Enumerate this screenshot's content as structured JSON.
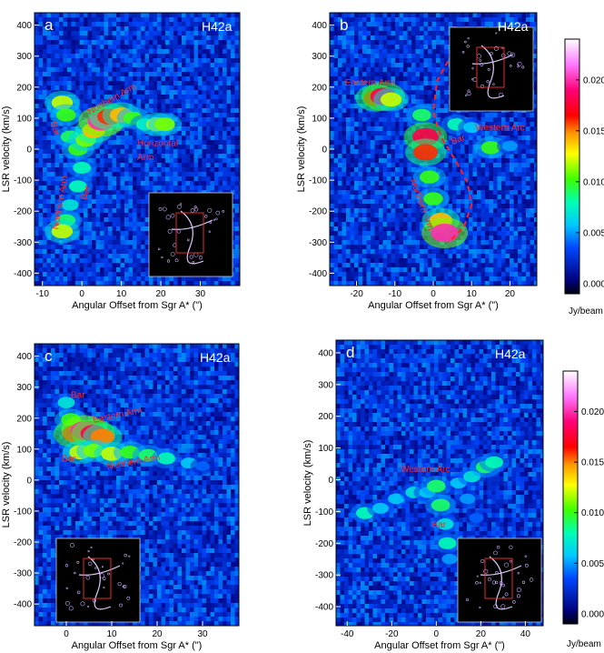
{
  "chart_data": [
    {
      "id": "a",
      "type": "heatmap",
      "panel_label": "a",
      "title": "H42a",
      "xlabel": "Angular Offset from Sgr A* (\")",
      "ylabel": "LSR velocity (km/s)",
      "xlim": [
        -12,
        40
      ],
      "ylim": [
        -440,
        440
      ],
      "xticks": [
        -10,
        0,
        10,
        20,
        30
      ],
      "yticks": [
        -400,
        -300,
        -200,
        -100,
        0,
        100,
        200,
        300,
        400
      ],
      "features": [
        {
          "x": -5,
          "y": 150,
          "i": 0.012
        },
        {
          "x": -4,
          "y": 110,
          "i": 0.01
        },
        {
          "x": -3,
          "y": 40,
          "i": 0.009
        },
        {
          "x": -1,
          "y": 0,
          "i": 0.01
        },
        {
          "x": 1,
          "y": 30,
          "i": 0.011
        },
        {
          "x": 3,
          "y": 60,
          "i": 0.014
        },
        {
          "x": 5,
          "y": 90,
          "i": 0.02
        },
        {
          "x": 7,
          "y": 105,
          "i": 0.016
        },
        {
          "x": 10,
          "y": 110,
          "i": 0.014
        },
        {
          "x": 13,
          "y": 100,
          "i": 0.01
        },
        {
          "x": 16,
          "y": 80,
          "i": 0.008
        },
        {
          "x": 19,
          "y": 80,
          "i": 0.012
        },
        {
          "x": 21,
          "y": 80,
          "i": 0.011
        },
        {
          "x": 0,
          "y": -60,
          "i": 0.008
        },
        {
          "x": -1,
          "y": -120,
          "i": 0.008
        },
        {
          "x": -3,
          "y": -180,
          "i": 0.007
        },
        {
          "x": -4,
          "y": -230,
          "i": 0.009
        },
        {
          "x": -5,
          "y": -265,
          "i": 0.012
        }
      ],
      "annotations": [
        {
          "text": "Bar",
          "x": -8,
          "y": 85,
          "rot": 72
        },
        {
          "text": "Northern Arm",
          "x": 2,
          "y": 110,
          "rot": -30
        },
        {
          "text": "Horizontal",
          "x": 14,
          "y": 10,
          "rot": 0
        },
        {
          "text": "Arm",
          "x": 14,
          "y": -35,
          "rot": 0
        },
        {
          "text": "Bar",
          "x": 1,
          "y": -165,
          "rot": -70
        },
        {
          "text": "Northern Arm",
          "x": -6,
          "y": -260,
          "rot": -80
        }
      ]
    },
    {
      "id": "b",
      "type": "heatmap",
      "panel_label": "b",
      "title": "H42a",
      "xlabel": "Angular Offset from Sgr A* (\")",
      "ylabel": "LSR velocity (km/s)",
      "xlim": [
        -27,
        27
      ],
      "ylim": [
        -440,
        440
      ],
      "xticks": [
        -20,
        -10,
        0,
        10,
        20
      ],
      "yticks": [
        -400,
        -300,
        -200,
        -100,
        0,
        100,
        200,
        300,
        400
      ],
      "features": [
        {
          "x": -15,
          "y": 165,
          "i": 0.016
        },
        {
          "x": -13,
          "y": 170,
          "i": 0.018
        },
        {
          "x": -11,
          "y": 160,
          "i": 0.012
        },
        {
          "x": -3,
          "y": 110,
          "i": 0.009
        },
        {
          "x": -2,
          "y": 40,
          "i": 0.018
        },
        {
          "x": -2,
          "y": -10,
          "i": 0.016
        },
        {
          "x": -1,
          "y": -90,
          "i": 0.01
        },
        {
          "x": 0,
          "y": -160,
          "i": 0.01
        },
        {
          "x": 2,
          "y": -230,
          "i": 0.014
        },
        {
          "x": 3,
          "y": -270,
          "i": 0.02
        },
        {
          "x": 6,
          "y": 80,
          "i": 0.008
        },
        {
          "x": 10,
          "y": 70,
          "i": 0.006
        },
        {
          "x": 15,
          "y": 5,
          "i": 0.01
        },
        {
          "x": 20,
          "y": 10,
          "i": 0.005
        }
      ],
      "curve": [
        {
          "x": 5,
          "y": 310
        },
        {
          "x": 1,
          "y": 220
        },
        {
          "x": 0,
          "y": 120
        },
        {
          "x": 2,
          "y": 40
        },
        {
          "x": 6,
          "y": -40
        },
        {
          "x": 9,
          "y": -110
        },
        {
          "x": 10,
          "y": -180
        },
        {
          "x": 8,
          "y": -250
        },
        {
          "x": 4,
          "y": -300
        }
      ],
      "annotations": [
        {
          "text": "Eastern Arm",
          "x": -23,
          "y": 205,
          "rot": 0
        },
        {
          "text": "Western Arc",
          "x": 11,
          "y": 60,
          "rot": 0
        },
        {
          "text": "Bar",
          "x": 5,
          "y": 15,
          "rot": -20
        },
        {
          "text": "Northern Arm",
          "x": -6,
          "y": -100,
          "rot": 70
        }
      ]
    },
    {
      "id": "c",
      "type": "heatmap",
      "panel_label": "c",
      "title": "H42a",
      "xlabel": "Angular Offset from Sgr A* (\")",
      "ylabel": "LSR velocity (km/s)",
      "xlim": [
        -7,
        38
      ],
      "ylim": [
        -470,
        440
      ],
      "xticks": [
        0,
        10,
        20,
        30
      ],
      "yticks": [
        -400,
        -300,
        -200,
        -100,
        0,
        100,
        200,
        300,
        400
      ],
      "features": [
        {
          "x": 0,
          "y": 250,
          "i": 0.007
        },
        {
          "x": 1,
          "y": 195,
          "i": 0.01
        },
        {
          "x": 2,
          "y": 150,
          "i": 0.018
        },
        {
          "x": 4,
          "y": 160,
          "i": 0.02
        },
        {
          "x": 6,
          "y": 150,
          "i": 0.018
        },
        {
          "x": 8,
          "y": 140,
          "i": 0.015
        },
        {
          "x": 3,
          "y": 90,
          "i": 0.012
        },
        {
          "x": 6,
          "y": 95,
          "i": 0.011
        },
        {
          "x": 10,
          "y": 85,
          "i": 0.012
        },
        {
          "x": 14,
          "y": 90,
          "i": 0.01
        },
        {
          "x": 18,
          "y": 80,
          "i": 0.009
        },
        {
          "x": 22,
          "y": 70,
          "i": 0.008
        },
        {
          "x": 27,
          "y": 55,
          "i": 0.006
        },
        {
          "x": 30,
          "y": 45,
          "i": 0.004
        }
      ],
      "annotations": [
        {
          "text": "Bar",
          "x": 1,
          "y": 265,
          "rot": 0
        },
        {
          "text": "Eastern Arm",
          "x": 6,
          "y": 185,
          "rot": -12
        },
        {
          "text": "Bar",
          "x": -1,
          "y": 60,
          "rot": 0
        },
        {
          "text": "Northern Arm",
          "x": 9,
          "y": 35,
          "rot": -10
        }
      ]
    },
    {
      "id": "d",
      "type": "heatmap",
      "panel_label": "d",
      "title": "H42a",
      "xlabel": "Angular Offset from Sgr A* (\")",
      "ylabel": "LSR velocity (km/s)",
      "xlim": [
        -45,
        48
      ],
      "ylim": [
        -460,
        440
      ],
      "xticks": [
        -40,
        -20,
        0,
        20,
        40
      ],
      "yticks": [
        -400,
        -300,
        -200,
        -100,
        0,
        100,
        200,
        300,
        400
      ],
      "features": [
        {
          "x": -32,
          "y": -105,
          "i": 0.008
        },
        {
          "x": -25,
          "y": -90,
          "i": 0.006
        },
        {
          "x": -18,
          "y": -60,
          "i": 0.006
        },
        {
          "x": -10,
          "y": -40,
          "i": 0.007
        },
        {
          "x": -4,
          "y": -40,
          "i": 0.006
        },
        {
          "x": 0,
          "y": -20,
          "i": 0.009
        },
        {
          "x": 2,
          "y": -80,
          "i": 0.009
        },
        {
          "x": 4,
          "y": -140,
          "i": 0.007
        },
        {
          "x": 5,
          "y": -200,
          "i": 0.008
        },
        {
          "x": 6,
          "y": -250,
          "i": 0.005
        },
        {
          "x": 10,
          "y": -10,
          "i": 0.006
        },
        {
          "x": 16,
          "y": 10,
          "i": 0.007
        },
        {
          "x": 22,
          "y": 40,
          "i": 0.009
        },
        {
          "x": 26,
          "y": 55,
          "i": 0.008
        },
        {
          "x": 14,
          "y": -60,
          "i": 0.005
        },
        {
          "x": 18,
          "y": -120,
          "i": 0.004
        }
      ],
      "annotations": [
        {
          "text": "Western Arc",
          "x": -16,
          "y": 25,
          "rot": 0
        },
        {
          "text": "Bar",
          "x": -2,
          "y": -150,
          "rot": 0
        }
      ]
    }
  ],
  "colorbar_top": {
    "label": "Jy/beam",
    "ticks": [
      "0.000",
      "0.005",
      "0.010",
      "0.015",
      "0.020"
    ],
    "range": [
      -0.001,
      0.024
    ]
  },
  "colorbar_bottom": {
    "label": "Jy/beam",
    "ticks": [
      "0.000",
      "0.005",
      "0.010",
      "0.015",
      "0.020"
    ],
    "range": [
      -0.001,
      0.024
    ]
  }
}
